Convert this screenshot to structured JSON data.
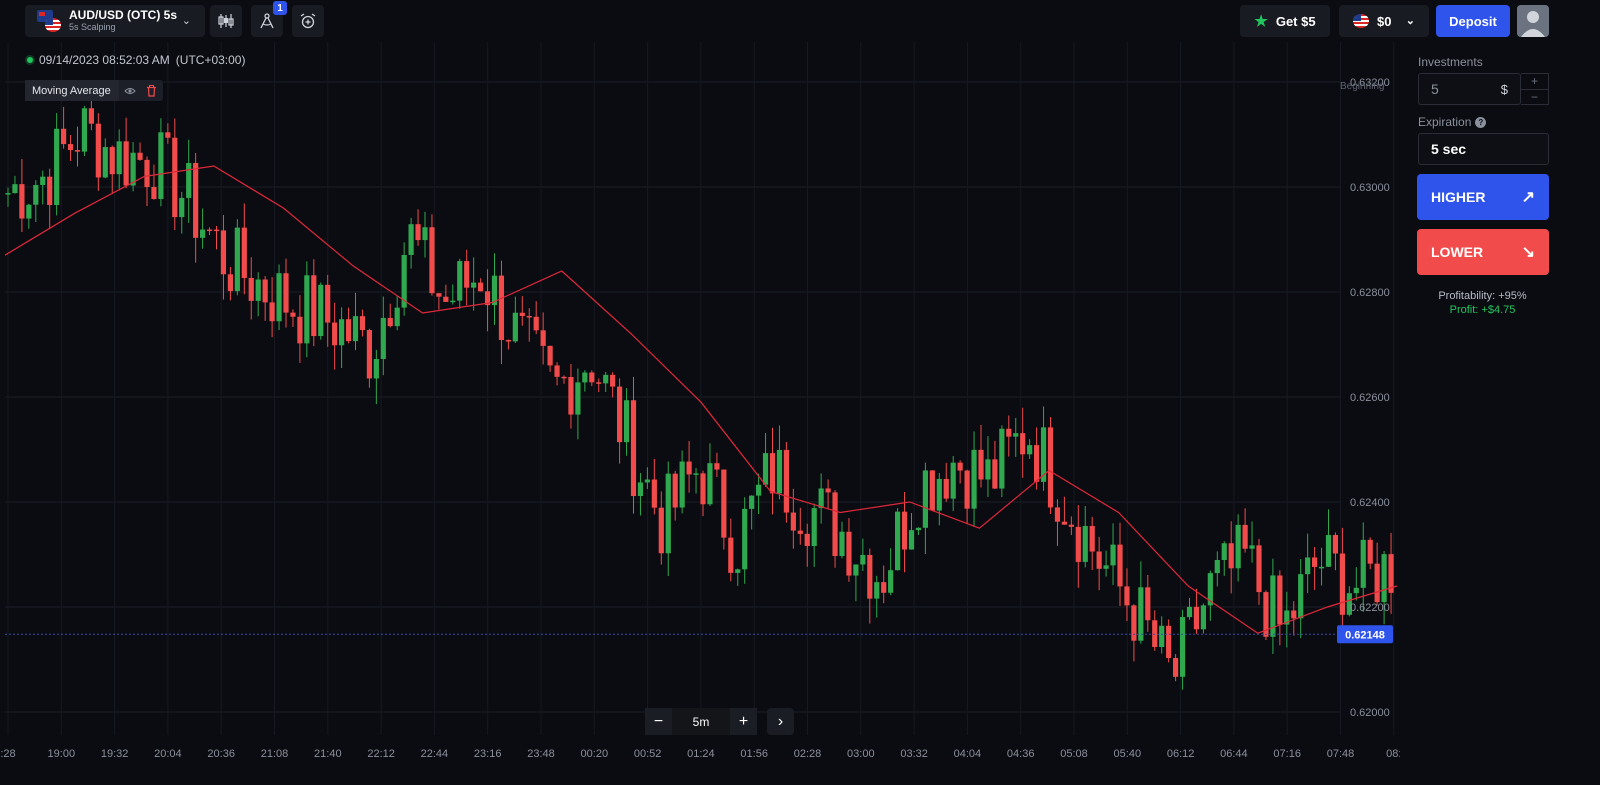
{
  "asset": {
    "name": "AUD/USD (OTC) 5s",
    "subtitle": "5s Scalping"
  },
  "toolbar": {
    "drawings_badge": "1"
  },
  "header": {
    "get_bonus": "Get $5",
    "balance": "$0",
    "deposit": "Deposit"
  },
  "chart_info": {
    "datetime": "09/14/2023  08:52:03 AM",
    "timezone": "(UTC+03:00)"
  },
  "indicator": {
    "name": "Moving Average"
  },
  "zoom": {
    "interval": "5m"
  },
  "panel": {
    "investments_label": "Investments",
    "investment_value": "5",
    "currency": "$",
    "expiration_label": "Expiration",
    "expiration_value": "5 sec",
    "higher_label": "HIGHER",
    "lower_label": "LOWER",
    "profitability": "Profitability: +95%",
    "profit": "Profit: +$4.75"
  },
  "colors": {
    "bull": "#2fa84f",
    "bear": "#f24b4b",
    "accent": "#2f54eb",
    "ma_line": "#e0283a"
  },
  "chart_data": {
    "type": "candlestick",
    "ylim": [
      0.6196,
      0.6323
    ],
    "yticks": [
      "0.63200",
      "0.63000",
      "0.62800",
      "0.62600",
      "0.62400",
      "0.62200",
      "0.62000"
    ],
    "ytick_values": [
      0.632,
      0.63,
      0.628,
      0.626,
      0.624,
      0.622,
      0.62
    ],
    "xticks": [
      ":28",
      "19:00",
      "19:32",
      "20:04",
      "20:36",
      "21:08",
      "21:40",
      "22:12",
      "22:44",
      "23:16",
      "23:48",
      "00:20",
      "00:52",
      "01:24",
      "01:56",
      "02:28",
      "03:00",
      "03:32",
      "04:04",
      "04:36",
      "05:08",
      "05:40",
      "06:12",
      "06:44",
      "07:16",
      "07:48",
      "08:"
    ],
    "current_price": "0.62148",
    "current_value": 0.62148,
    "corner_label": "Beginning",
    "key_closes": [
      0.6299,
      0.6302,
      0.6311,
      0.6306,
      0.6305,
      0.6297,
      0.6286,
      0.6281,
      0.6277,
      0.6274,
      0.6269,
      0.6291,
      0.6278,
      0.6284,
      0.6271,
      0.6261,
      0.6268,
      0.6252,
      0.6236,
      0.6247,
      0.6232,
      0.6246,
      0.6239,
      0.6234,
      0.6226,
      0.6243,
      0.6248,
      0.6244,
      0.6254,
      0.6241,
      0.6229,
      0.6219,
      0.6206,
      0.6223,
      0.6229,
      0.6215,
      0.6229,
      0.6224,
      0.6228
    ],
    "ma_values": [
      0.6287,
      0.6295,
      0.6302,
      0.6304,
      0.6296,
      0.6285,
      0.6276,
      0.6278,
      0.6284,
      0.6272,
      0.6259,
      0.6242,
      0.6238,
      0.624,
      0.6235,
      0.6246,
      0.6238,
      0.6224,
      0.6215,
      0.622,
      0.6224
    ]
  }
}
